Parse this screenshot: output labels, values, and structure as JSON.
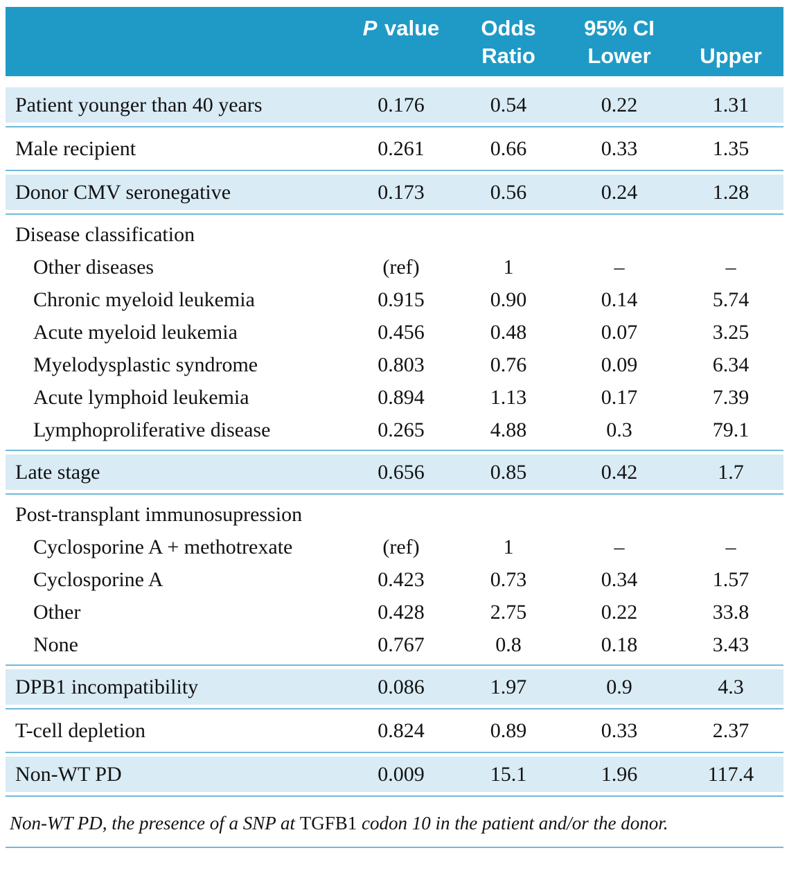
{
  "colors": {
    "header_bg": "#1F9AC6",
    "row_shaded_bg": "#D9EBF5",
    "rule": "#6FB9DB",
    "text": "#121212",
    "header_text": "#FFFFFF"
  },
  "table": {
    "header": {
      "p_label_italic": "P",
      "p_label_rest": " value",
      "odds_line1": "Odds",
      "odds_line2": "Ratio",
      "ci_line1": "95% CI",
      "ci_line2": "Lower",
      "upper_label": "Upper"
    },
    "rows": [
      {
        "type": "data",
        "shaded": true,
        "label": "Patient younger than 40 years",
        "p": "0.176",
        "or": "0.54",
        "lower": "0.22",
        "upper": "1.31"
      },
      {
        "type": "data",
        "shaded": false,
        "label": "Male recipient",
        "p": "0.261",
        "or": "0.66",
        "lower": "0.33",
        "upper": "1.35"
      },
      {
        "type": "data",
        "shaded": true,
        "label": "Donor CMV seronegative",
        "p": "0.173",
        "or": "0.56",
        "lower": "0.24",
        "upper": "1.28"
      },
      {
        "type": "group",
        "shaded": false,
        "label": "Disease classification",
        "children": [
          {
            "label": "Other diseases",
            "p": "(ref)",
            "or": "1",
            "lower": "–",
            "upper": "–"
          },
          {
            "label": "Chronic myeloid leukemia",
            "p": "0.915",
            "or": "0.90",
            "lower": "0.14",
            "upper": "5.74"
          },
          {
            "label": "Acute myeloid leukemia",
            "p": "0.456",
            "or": "0.48",
            "lower": "0.07",
            "upper": "3.25"
          },
          {
            "label": "Myelodysplastic syndrome",
            "p": "0.803",
            "or": "0.76",
            "lower": "0.09",
            "upper": "6.34"
          },
          {
            "label": "Acute lymphoid leukemia",
            "p": "0.894",
            "or": "1.13",
            "lower": "0.17",
            "upper": "7.39"
          },
          {
            "label": "Lymphoproliferative disease",
            "p": "0.265",
            "or": "4.88",
            "lower": "0.3",
            "upper": "79.1"
          }
        ]
      },
      {
        "type": "data",
        "shaded": true,
        "label": "Late stage",
        "p": "0.656",
        "or": "0.85",
        "lower": "0.42",
        "upper": "1.7"
      },
      {
        "type": "group",
        "shaded": false,
        "label": "Post-transplant immunosupression",
        "children": [
          {
            "label": "Cyclosporine A + methotrexate",
            "p": "(ref)",
            "or": "1",
            "lower": "–",
            "upper": "–"
          },
          {
            "label": "Cyclosporine A",
            "p": "0.423",
            "or": "0.73",
            "lower": "0.34",
            "upper": "1.57"
          },
          {
            "label": "Other",
            "p": "0.428",
            "or": "2.75",
            "lower": "0.22",
            "upper": "33.8"
          },
          {
            "label": "None",
            "p": "0.767",
            "or": "0.8",
            "lower": "0.18",
            "upper": "3.43"
          }
        ]
      },
      {
        "type": "data",
        "shaded": true,
        "label": "DPB1 incompatibility",
        "p": "0.086",
        "or": "1.97",
        "lower": "0.9",
        "upper": "4.3"
      },
      {
        "type": "data",
        "shaded": false,
        "label": "T-cell depletion",
        "p": "0.824",
        "or": "0.89",
        "lower": "0.33",
        "upper": "2.37"
      },
      {
        "type": "data",
        "shaded": true,
        "label": "Non-WT PD",
        "p": "0.009",
        "or": "15.1",
        "lower": "1.96",
        "upper": "117.4"
      }
    ]
  },
  "footnote": {
    "prefix": "Non-WT PD, the presence of a SNP at ",
    "gene": "TGFB1",
    "suffix": " codon 10 in the patient and/or the donor."
  }
}
